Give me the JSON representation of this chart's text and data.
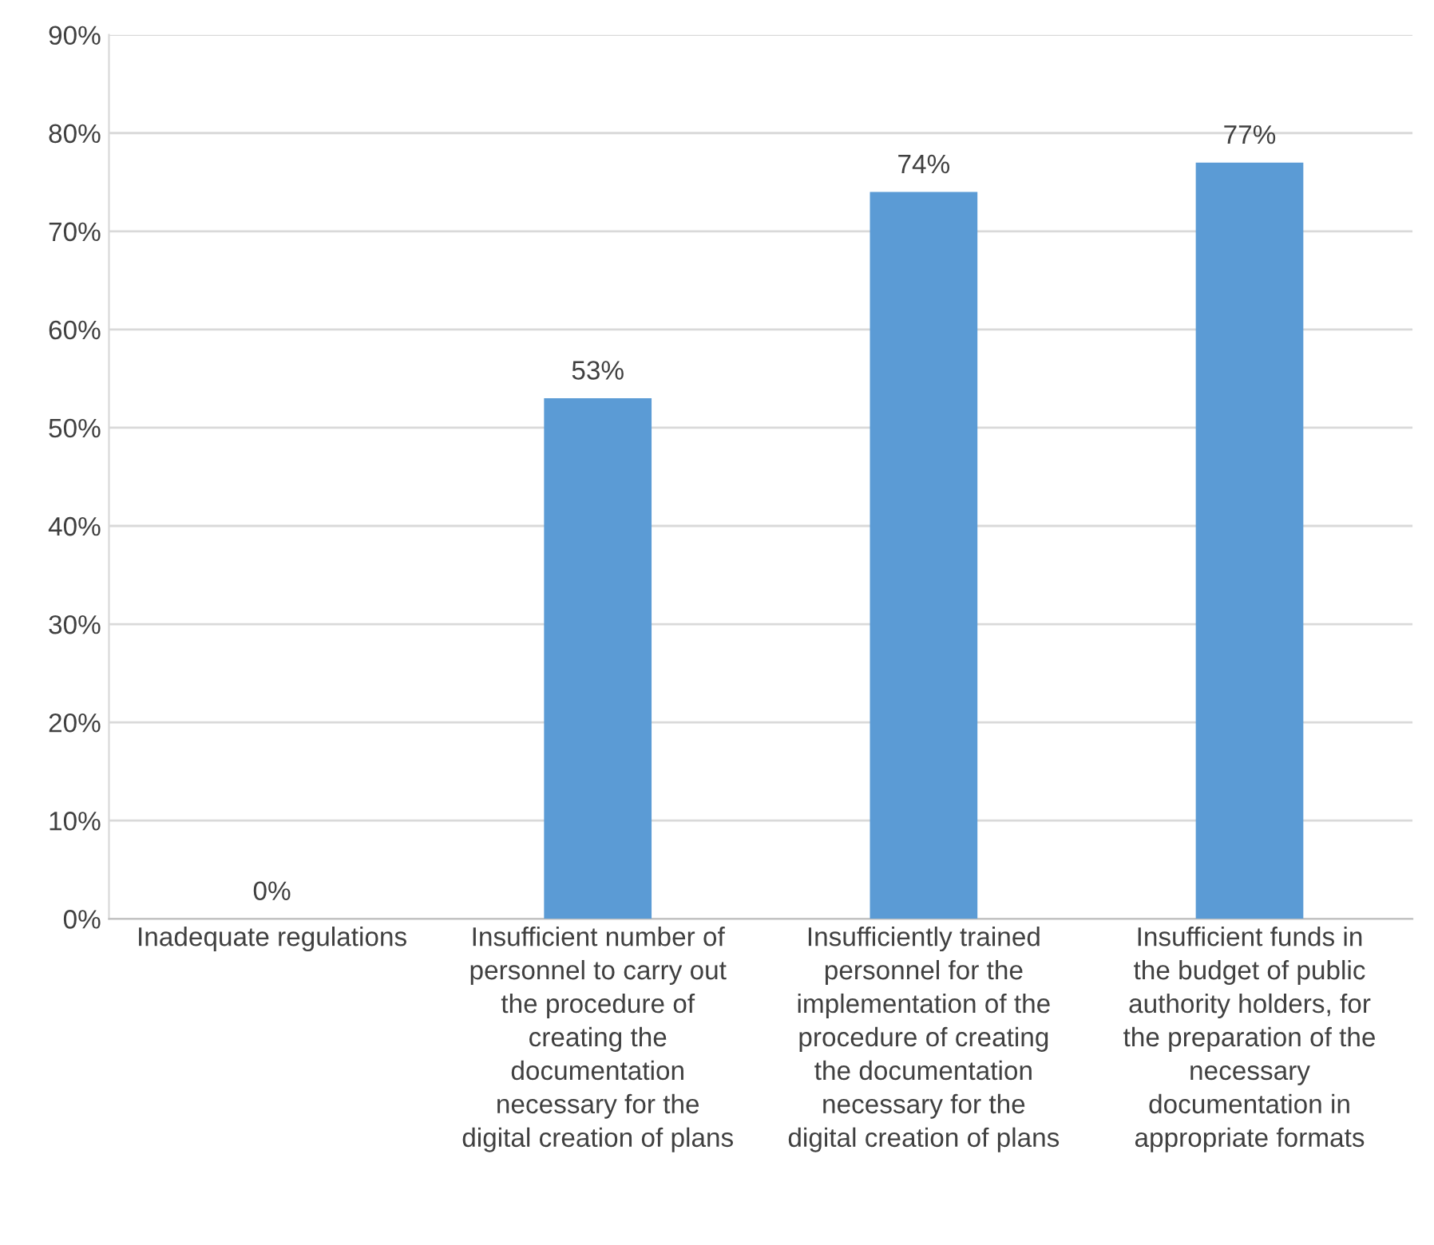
{
  "chart_data": {
    "type": "bar",
    "categories": [
      "Inadequate regulations",
      "Insufficient number of\npersonnel to carry out\nthe procedure of\ncreating the\ndocumentation\nnecessary for the\ndigital creation of plans",
      "Insufficiently trained\npersonnel for the\nimplementation of the\nprocedure of creating\nthe documentation\nnecessary for the\ndigital creation of plans",
      "Insufficient funds in\nthe budget of public\nauthority holders, for\nthe preparation of the\nnecessary\ndocumentation in\nappropriate formats"
    ],
    "values": [
      0,
      53,
      74,
      77
    ],
    "value_labels": [
      "0%",
      "53%",
      "74%",
      "77%"
    ],
    "color": "#5b9bd5",
    "ylim": [
      0,
      90
    ],
    "yticks": [
      {
        "value": 0,
        "label": "0%"
      },
      {
        "value": 10,
        "label": "10%"
      },
      {
        "value": 20,
        "label": "20%"
      },
      {
        "value": 30,
        "label": "30%"
      },
      {
        "value": 40,
        "label": "40%"
      },
      {
        "value": 50,
        "label": "50%"
      },
      {
        "value": 60,
        "label": "60%"
      },
      {
        "value": 70,
        "label": "70%"
      },
      {
        "value": 80,
        "label": "80%"
      },
      {
        "value": 90,
        "label": "90%"
      }
    ],
    "grid": "y"
  }
}
